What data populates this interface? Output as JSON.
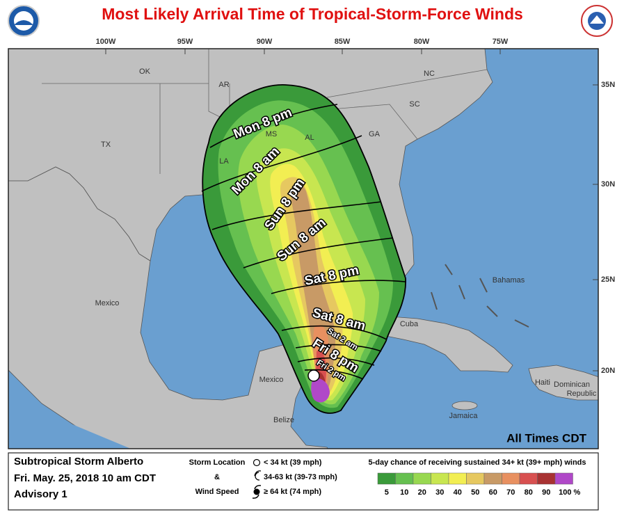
{
  "header": {
    "title": "Most Likely Arrival Time of Tropical-Storm-Force Winds"
  },
  "map": {
    "longitudes": [
      "100W",
      "95W",
      "90W",
      "85W",
      "80W",
      "75W"
    ],
    "latitudes": [
      "35N",
      "30N",
      "25N",
      "20N"
    ],
    "regions": [
      "OK",
      "AR",
      "TX",
      "LA",
      "MS",
      "AL",
      "GA",
      "SC",
      "NC",
      "Mexico",
      "Mexico",
      "Belize",
      "Cuba",
      "Bahamas",
      "Haiti",
      "Dominican",
      "Republic",
      "Jamaica"
    ],
    "time_labels": [
      "Mon 8 pm",
      "Mon 8 am",
      "Sun 8 pm",
      "Sun 8 am",
      "Sat 8 pm",
      "Sat 8 am",
      "Sat 2 am",
      "Fri 8 pm",
      "Fri 2 pm"
    ],
    "note": "All Times CDT"
  },
  "legend": {
    "storm": [
      "Subtropical Storm Alberto",
      "Fri. May. 25, 2018  10 am CDT",
      "Advisory 1"
    ],
    "key_title": [
      "Storm Location",
      "&",
      "Wind Speed"
    ],
    "key_entries": [
      "< 34 kt (39 mph)",
      "34-63 kt (39-73 mph)",
      "≥ 64 kt (74 mph)"
    ],
    "scale_title": "5-day chance of receiving sustained 34+ kt (39+ mph) winds",
    "scale_labels": [
      5,
      10,
      20,
      30,
      40,
      50,
      60,
      70,
      80,
      90,
      "100 %"
    ],
    "scale_colors": [
      "#3a9a3a",
      "#66c050",
      "#98d850",
      "#c8e650",
      "#f2ee52",
      "#e6c860",
      "#c89a66",
      "#e89060",
      "#d85050",
      "#a83232",
      "#b048c8"
    ]
  }
}
